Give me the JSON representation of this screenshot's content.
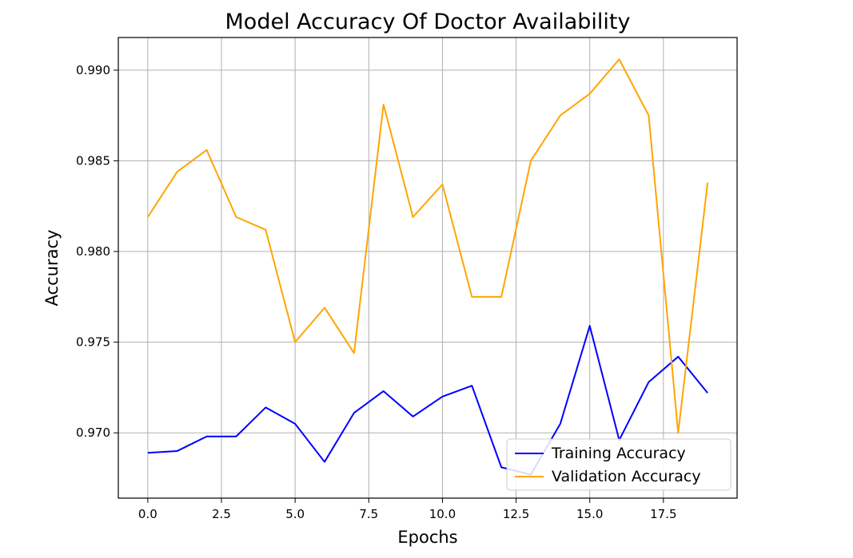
{
  "chart_data": {
    "type": "line",
    "title": "Model Accuracy Of Doctor Availability",
    "xlabel": "Epochs",
    "ylabel": "Accuracy",
    "x": [
      0,
      1,
      2,
      3,
      4,
      5,
      6,
      7,
      8,
      9,
      10,
      11,
      12,
      13,
      14,
      15,
      16,
      17,
      18,
      19
    ],
    "xlim": [
      -1.0,
      20.0
    ],
    "ylim": [
      0.9664,
      0.9918
    ],
    "xticks": [
      0.0,
      2.5,
      5.0,
      7.5,
      10.0,
      12.5,
      15.0,
      17.5
    ],
    "xtick_labels": [
      "0.0",
      "2.5",
      "5.0",
      "7.5",
      "10.0",
      "12.5",
      "15.0",
      "17.5"
    ],
    "yticks": [
      0.97,
      0.975,
      0.98,
      0.985,
      0.99
    ],
    "ytick_labels": [
      "0.970",
      "0.975",
      "0.980",
      "0.985",
      "0.990"
    ],
    "grid": true,
    "legend_position": "lower-right",
    "series": [
      {
        "name": "Training Accuracy",
        "color": "#0000ff",
        "values": [
          0.9689,
          0.969,
          0.9698,
          0.9698,
          0.9714,
          0.9705,
          0.9684,
          0.9711,
          0.9723,
          0.9709,
          0.972,
          0.9726,
          0.9681,
          0.9677,
          0.9705,
          0.9759,
          0.9696,
          0.9728,
          0.9742,
          0.9722
        ]
      },
      {
        "name": "Validation Accuracy",
        "color": "#ffa500",
        "values": [
          0.9819,
          0.9844,
          0.9856,
          0.9819,
          0.9812,
          0.975,
          0.9769,
          0.9744,
          0.9881,
          0.9819,
          0.9837,
          0.9775,
          0.9775,
          0.985,
          0.9875,
          0.9887,
          0.9906,
          0.9875,
          0.97,
          0.9838
        ]
      }
    ]
  }
}
